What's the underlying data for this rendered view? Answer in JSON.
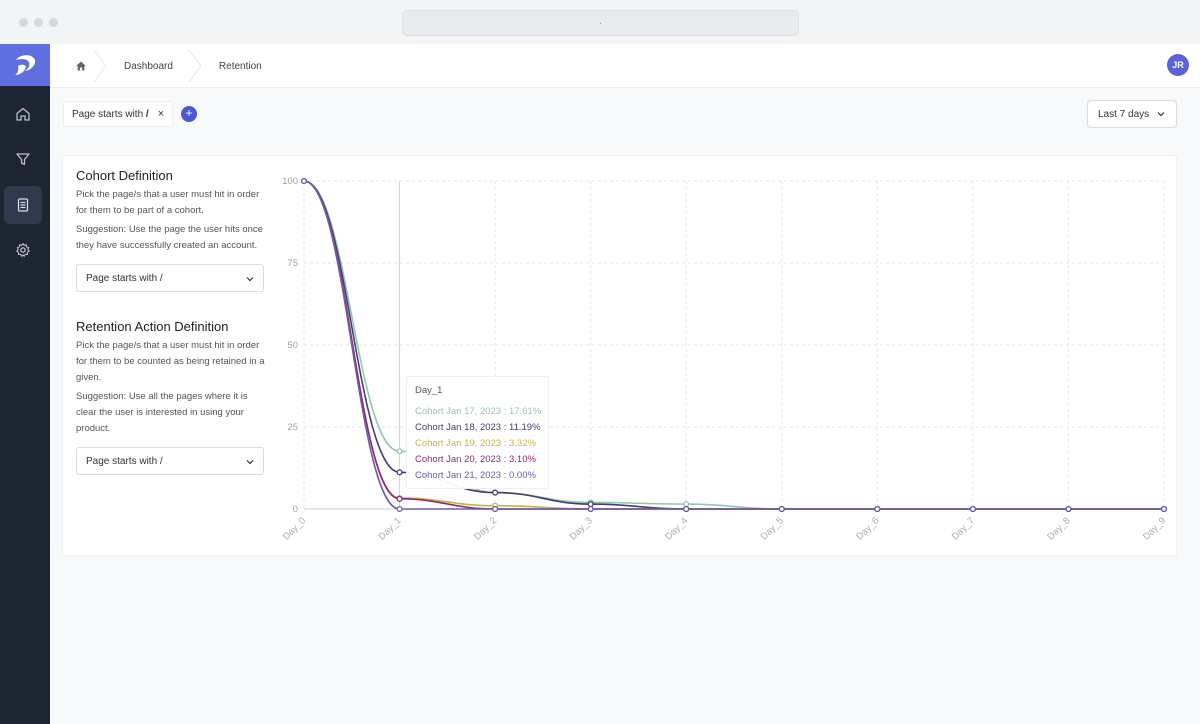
{
  "window": {
    "url": "."
  },
  "sidebar": {
    "items": [
      {
        "icon": "home-icon"
      },
      {
        "icon": "funnel-icon"
      },
      {
        "icon": "report-icon",
        "active": true
      },
      {
        "icon": "gear-icon"
      }
    ]
  },
  "breadcrumb": {
    "items": [
      "Dashboard",
      "Retention"
    ]
  },
  "user": {
    "initials": "JR"
  },
  "filter": {
    "prefix": "Page starts with ",
    "value": "/",
    "remove": "×",
    "add": "+"
  },
  "date_range": {
    "label": "Last 7 days"
  },
  "cohort": {
    "title": "Cohort Definition",
    "description": "Pick the page/s that a user must hit in order for them to be part of a cohort.",
    "suggestion": "Suggestion: Use the page the user hits once they have successfully created an account.",
    "select": "Page starts with /"
  },
  "retention": {
    "title": "Retention Action Definition",
    "description": "Pick the page/s that a user must hit in order for them to be counted as being retained in a given.",
    "suggestion": "Suggestion: Use all the pages where it is clear the user is interested in using your product.",
    "select": "Page starts with /"
  },
  "tooltip": {
    "title": "Day_1",
    "rows": [
      {
        "text": "Cohort Jan 17, 2023 : 17.61%",
        "color": "#8fc9ae"
      },
      {
        "text": "Cohort Jan 18, 2023 : 11.19%",
        "color": "#4a3b6e"
      },
      {
        "text": "Cohort Jan 19, 2023 : 3.32%",
        "color": "#c8b43a"
      },
      {
        "text": "Cohort Jan 20, 2023 : 3.10%",
        "color": "#8b2a7a"
      },
      {
        "text": "Cohort Jan 21, 2023 : 0.00%",
        "color": "#6a5bb0"
      }
    ]
  },
  "chart_data": {
    "type": "line",
    "categories": [
      "Day_0",
      "Day_1",
      "Day_2",
      "Day_3",
      "Day_4",
      "Day_5",
      "Day_6",
      "Day_7",
      "Day_8",
      "Day_9"
    ],
    "yticks": [
      0,
      25,
      50,
      75,
      100
    ],
    "ylim": [
      0,
      100
    ],
    "grid": true,
    "series": [
      {
        "name": "Cohort Jan 17, 2023",
        "color": "#8fc9ae",
        "values": [
          100,
          17.61,
          5,
          2,
          1.5,
          0,
          0,
          0,
          0,
          0
        ]
      },
      {
        "name": "Cohort Jan 18, 2023",
        "color": "#4a3b6e",
        "values": [
          100,
          11.19,
          5,
          1.5,
          0,
          0,
          0,
          0,
          0,
          0
        ]
      },
      {
        "name": "Cohort Jan 19, 2023",
        "color": "#c8b43a",
        "values": [
          100,
          3.32,
          1,
          0,
          0,
          0,
          0,
          0,
          0,
          0
        ]
      },
      {
        "name": "Cohort Jan 20, 2023",
        "color": "#8b2a7a",
        "values": [
          100,
          3.1,
          0,
          0,
          0,
          0,
          0,
          0,
          0,
          0
        ]
      },
      {
        "name": "Cohort Jan 21, 2023",
        "color": "#6a5bb0",
        "values": [
          100,
          0,
          0,
          0,
          0,
          0,
          0,
          0,
          0,
          0
        ]
      }
    ]
  }
}
